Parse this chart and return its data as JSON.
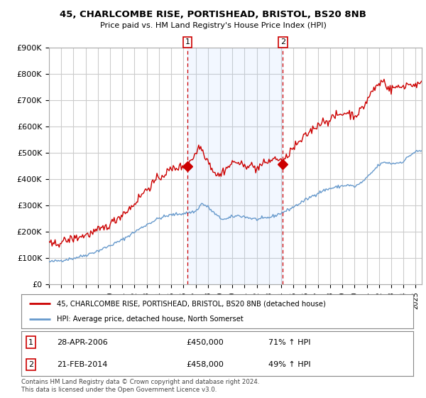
{
  "title1": "45, CHARLCOMBE RISE, PORTISHEAD, BRISTOL, BS20 8NB",
  "title2": "Price paid vs. HM Land Registry's House Price Index (HPI)",
  "ylabel_ticks": [
    "£0",
    "£100K",
    "£200K",
    "£300K",
    "£400K",
    "£500K",
    "£600K",
    "£700K",
    "£800K",
    "£900K"
  ],
  "ytick_values": [
    0,
    100000,
    200000,
    300000,
    400000,
    500000,
    600000,
    700000,
    800000,
    900000
  ],
  "ylim": [
    0,
    900000
  ],
  "xlim_start": 1995.0,
  "xlim_end": 2025.5,
  "marker1_date": 2006.32,
  "marker1_price": 450000,
  "marker2_date": 2014.13,
  "marker2_price": 458000,
  "vline1_x": 2006.32,
  "vline2_x": 2014.13,
  "shade_alpha": 0.15,
  "shade_color": "#aaccff",
  "legend_line1": "45, CHARLCOMBE RISE, PORTISHEAD, BRISTOL, BS20 8NB (detached house)",
  "legend_line2": "HPI: Average price, detached house, North Somerset",
  "footer": "Contains HM Land Registry data © Crown copyright and database right 2024.\nThis data is licensed under the Open Government Licence v3.0.",
  "red_color": "#cc0000",
  "blue_color": "#6699cc",
  "plot_bg_color": "#ffffff",
  "grid_color": "#cccccc",
  "box1_label": "1",
  "box2_label": "2",
  "info1_date": "28-APR-2006",
  "info1_price": "£450,000",
  "info1_hpi": "71% ↑ HPI",
  "info2_date": "21-FEB-2014",
  "info2_price": "£458,000",
  "info2_hpi": "49% ↑ HPI"
}
